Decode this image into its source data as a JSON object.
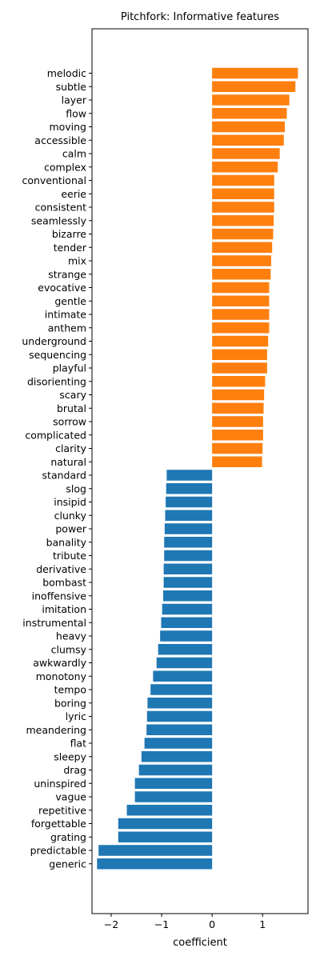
{
  "chart_data": {
    "type": "bar",
    "orientation": "horizontal",
    "title": "Pitchfork: Informative features",
    "xlabel": "coefficient",
    "ylabel": "",
    "xlim": [
      -2.38,
      1.9
    ],
    "xticks": [
      -2,
      -1,
      0,
      1
    ],
    "xtick_labels": [
      "−2",
      "−1",
      "0",
      "1"
    ],
    "grid": false,
    "legend": "none",
    "colors": {
      "positive": "#ff7f0e",
      "negative": "#1f77b4"
    },
    "categories": [
      "melodic",
      "subtle",
      "layer",
      "flow",
      "moving",
      "accessible",
      "calm",
      "complex",
      "conventional",
      "eerie",
      "consistent",
      "seamlessly",
      "bizarre",
      "tender",
      "mix",
      "strange",
      "evocative",
      "gentle",
      "intimate",
      "anthem",
      "underground",
      "sequencing",
      "playful",
      "disorienting",
      "scary",
      "brutal",
      "sorrow",
      "complicated",
      "clarity",
      "natural",
      "standard",
      "slog",
      "insipid",
      "clunky",
      "power",
      "banality",
      "tribute",
      "derivative",
      "bombast",
      "inoffensive",
      "imitation",
      "instrumental",
      "heavy",
      "clumsy",
      "awkwardly",
      "monotony",
      "tempo",
      "boring",
      "lyric",
      "meandering",
      "flat",
      "sleepy",
      "drag",
      "uninspired",
      "vague",
      "repetitive",
      "forgettable",
      "grating",
      "predictable",
      "generic"
    ],
    "values": [
      1.7,
      1.65,
      1.53,
      1.48,
      1.44,
      1.42,
      1.34,
      1.3,
      1.23,
      1.23,
      1.23,
      1.22,
      1.21,
      1.19,
      1.17,
      1.16,
      1.13,
      1.13,
      1.13,
      1.13,
      1.11,
      1.09,
      1.09,
      1.05,
      1.03,
      1.02,
      1.01,
      1.01,
      1.0,
      0.99,
      -0.9,
      -0.91,
      -0.92,
      -0.93,
      -0.94,
      -0.95,
      -0.95,
      -0.96,
      -0.96,
      -0.97,
      -0.99,
      -1.01,
      -1.03,
      -1.07,
      -1.1,
      -1.17,
      -1.22,
      -1.28,
      -1.29,
      -1.3,
      -1.34,
      -1.4,
      -1.45,
      -1.53,
      -1.53,
      -1.69,
      -1.86,
      -1.86,
      -2.25,
      -2.28
    ]
  }
}
